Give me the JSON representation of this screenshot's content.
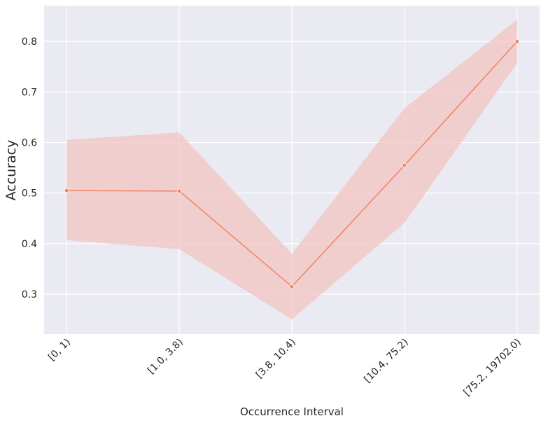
{
  "chart_data": {
    "type": "line",
    "x_label": "Occurrence Interval",
    "y_label": "Accuracy",
    "categories": [
      "[0, 1)",
      "[1.0, 3.8)",
      "[3.8, 10.4)",
      "[10.4, 75.2)",
      "[75.2, 19702.0)"
    ],
    "values": [
      0.505,
      0.504,
      0.315,
      0.555,
      0.8
    ],
    "ci_lower": [
      0.407,
      0.389,
      0.25,
      0.441,
      0.757
    ],
    "ci_upper": [
      0.605,
      0.62,
      0.38,
      0.668,
      0.843
    ],
    "color": "#ee8866",
    "band_color": "#f3c4c1",
    "ylim": [
      0.221,
      0.871
    ],
    "yticks": [
      0.3,
      0.4,
      0.5,
      0.6,
      0.7,
      0.8
    ],
    "grid": true
  }
}
